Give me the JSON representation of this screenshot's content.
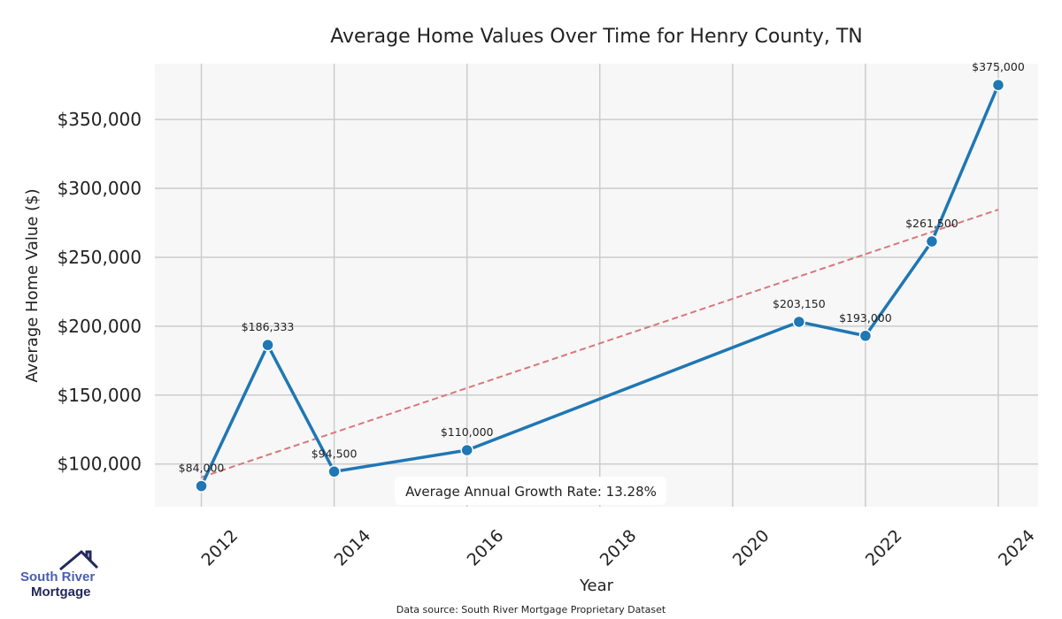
{
  "chart_data": {
    "type": "line",
    "title": "Average Home Values Over Time for Henry County, TN",
    "xlabel": "Year",
    "ylabel": "Average Home Value ($)",
    "xlim": [
      2011.3,
      2024.6
    ],
    "ylim": [
      69000,
      390500
    ],
    "x_ticks": [
      2012,
      2014,
      2016,
      2018,
      2020,
      2022,
      2024
    ],
    "y_ticks": [
      100000,
      150000,
      200000,
      250000,
      300000,
      350000
    ],
    "y_tick_labels": [
      "$100,000",
      "$150,000",
      "$200,000",
      "$250,000",
      "$300,000",
      "$350,000"
    ],
    "grid": true,
    "series": [
      {
        "name": "Average Home Value",
        "color": "#1f77b4",
        "x": [
          2012,
          2013,
          2014,
          2016,
          2021,
          2022,
          2023,
          2024
        ],
        "values": [
          84000,
          186333,
          94500,
          110000,
          203150,
          193000,
          261500,
          375000
        ],
        "labels": [
          "$84,000",
          "$186,333",
          "$94,500",
          "$110,000",
          "$203,150",
          "$193,000",
          "$261,500",
          "$375,000"
        ]
      },
      {
        "name": "Trend",
        "color": "#d9777a",
        "style": "dashed",
        "x": [
          2012,
          2024
        ],
        "values": [
          90400,
          284600
        ]
      }
    ],
    "annotation": "Average Annual Growth Rate: 13.28%",
    "source": "Data source: South River Mortgage Proprietary Dataset"
  },
  "logo": {
    "line1": "South River",
    "line2": "Mortgage"
  }
}
